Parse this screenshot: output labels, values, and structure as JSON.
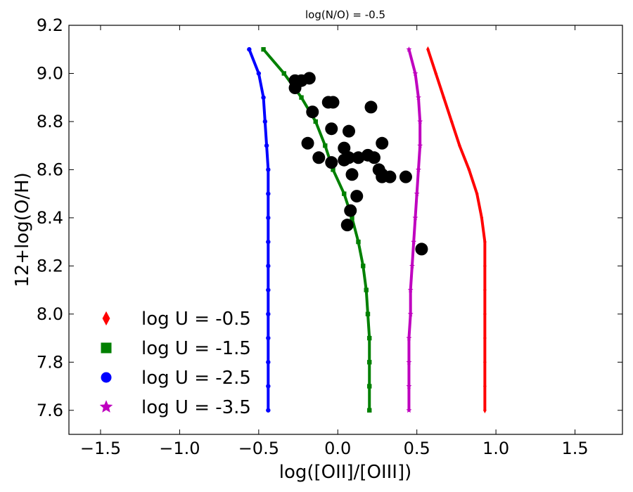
{
  "chart_data": {
    "type": "line",
    "title": "log(N/O) = -0.5",
    "xlabel": "log([OII]/[OIII])",
    "ylabel": "12+log(O/H)",
    "xlim": [
      -1.7,
      1.8
    ],
    "ylim": [
      7.5,
      9.2
    ],
    "xticks": [
      -1.5,
      -1.0,
      -0.5,
      0.0,
      0.5,
      1.0,
      1.5
    ],
    "xtick_labels": [
      "−1.5",
      "−1.0",
      "−0.5",
      "0.0",
      "0.5",
      "1.0",
      "1.5"
    ],
    "yticks": [
      7.6,
      7.8,
      8.0,
      8.2,
      8.4,
      8.6,
      8.8,
      9.0,
      9.2
    ],
    "ytick_labels": [
      "7.6",
      "7.8",
      "8.0",
      "8.2",
      "8.4",
      "8.6",
      "8.8",
      "9.0",
      "9.2"
    ],
    "grid": false,
    "legend_position": "bottom-left",
    "series": [
      {
        "name": "log U = -0.5",
        "color": "#ff0000",
        "marker": "diamond",
        "x": [
          0.57,
          0.62,
          0.67,
          0.72,
          0.77,
          0.83,
          0.88,
          0.91,
          0.93,
          0.93,
          0.93,
          0.93,
          0.93,
          0.93,
          0.93,
          0.93
        ],
        "y": [
          9.1,
          9.0,
          8.9,
          8.8,
          8.7,
          8.6,
          8.5,
          8.4,
          8.3,
          8.2,
          8.1,
          8.0,
          7.9,
          7.8,
          7.7,
          7.6
        ]
      },
      {
        "name": "log U = -1.5",
        "color": "#008000",
        "marker": "square",
        "x": [
          -0.47,
          -0.34,
          -0.23,
          -0.14,
          -0.08,
          -0.03,
          0.04,
          0.09,
          0.13,
          0.16,
          0.18,
          0.19,
          0.2,
          0.2,
          0.2,
          0.2
        ],
        "y": [
          9.1,
          9.0,
          8.9,
          8.8,
          8.7,
          8.6,
          8.5,
          8.4,
          8.3,
          8.2,
          8.1,
          8.0,
          7.9,
          7.8,
          7.7,
          7.6
        ]
      },
      {
        "name": "log U = -2.5",
        "color": "#0000ff",
        "marker": "circle",
        "x": [
          -0.56,
          -0.5,
          -0.47,
          -0.46,
          -0.45,
          -0.44,
          -0.44,
          -0.44,
          -0.44,
          -0.44,
          -0.44,
          -0.44,
          -0.44,
          -0.44,
          -0.44,
          -0.44
        ],
        "y": [
          9.1,
          9.0,
          8.9,
          8.8,
          8.7,
          8.6,
          8.5,
          8.4,
          8.3,
          8.2,
          8.1,
          8.0,
          7.9,
          7.8,
          7.7,
          7.6
        ]
      },
      {
        "name": "log U = -3.5",
        "color": "#bf00bf",
        "marker": "star",
        "x": [
          0.45,
          0.49,
          0.51,
          0.52,
          0.52,
          0.51,
          0.5,
          0.49,
          0.48,
          0.47,
          0.46,
          0.46,
          0.45,
          0.45,
          0.45,
          0.45
        ],
        "y": [
          9.1,
          9.0,
          8.9,
          8.8,
          8.7,
          8.6,
          8.5,
          8.4,
          8.3,
          8.2,
          8.1,
          8.0,
          7.9,
          7.8,
          7.7,
          7.6
        ]
      }
    ],
    "observations": {
      "color": "#000000",
      "marker": "circle",
      "points": [
        [
          -0.27,
          8.97
        ],
        [
          -0.23,
          8.97
        ],
        [
          -0.18,
          8.98
        ],
        [
          -0.27,
          8.94
        ],
        [
          -0.06,
          8.88
        ],
        [
          -0.03,
          8.88
        ],
        [
          0.21,
          8.86
        ],
        [
          -0.16,
          8.84
        ],
        [
          -0.04,
          8.77
        ],
        [
          0.07,
          8.76
        ],
        [
          -0.19,
          8.71
        ],
        [
          0.28,
          8.71
        ],
        [
          0.04,
          8.69
        ],
        [
          -0.12,
          8.65
        ],
        [
          0.04,
          8.64
        ],
        [
          0.07,
          8.65
        ],
        [
          0.13,
          8.65
        ],
        [
          0.19,
          8.66
        ],
        [
          0.23,
          8.65
        ],
        [
          -0.04,
          8.63
        ],
        [
          0.26,
          8.6
        ],
        [
          0.09,
          8.58
        ],
        [
          0.28,
          8.58
        ],
        [
          0.43,
          8.57
        ],
        [
          0.28,
          8.57
        ],
        [
          0.33,
          8.57
        ],
        [
          0.12,
          8.49
        ],
        [
          0.08,
          8.43
        ],
        [
          0.06,
          8.37
        ],
        [
          0.53,
          8.27
        ]
      ]
    }
  }
}
